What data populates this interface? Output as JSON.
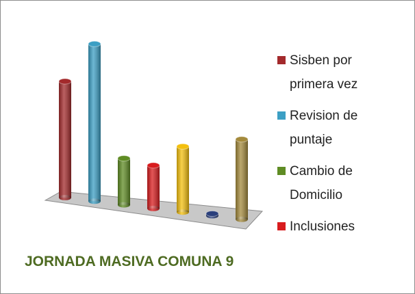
{
  "chart_data": {
    "type": "bar3d",
    "title": "JORNADA MASIVA COMUNA 9",
    "series": [
      {
        "name": "Sisben por primera vez",
        "color": "#a32a2c",
        "values": [
          170
        ]
      },
      {
        "name": "Revision de puntaje",
        "color": "#3c9fc4",
        "values": [
          230
        ]
      },
      {
        "name": "Cambio de Domicilio",
        "color": "#5f8c24",
        "values": [
          68
        ]
      },
      {
        "name": "Inclusiones",
        "color": "#d81c1e",
        "values": [
          63
        ]
      },
      {
        "name": null,
        "color": "#f4c00e",
        "values": [
          96
        ]
      },
      {
        "name": null,
        "color": "#2a3f7c",
        "values": [
          3
        ]
      },
      {
        "name": null,
        "color": "#a48a3c",
        "values": [
          117
        ]
      }
    ]
  }
}
